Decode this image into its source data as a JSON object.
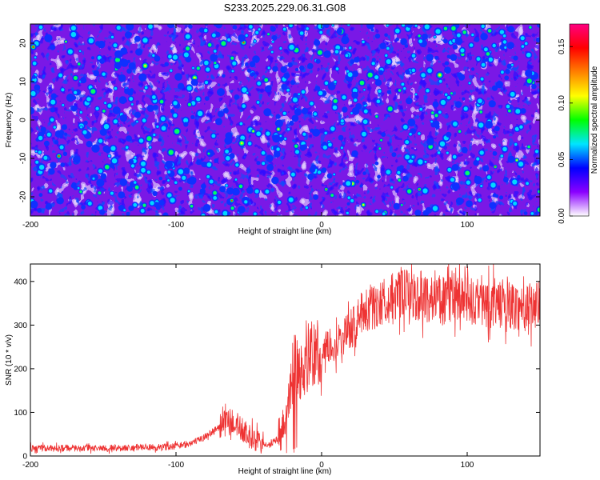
{
  "title": "S233.2025.229.06.31.G08",
  "chart_data": [
    {
      "type": "heatmap",
      "title": "S233.2025.229.06.31.G08",
      "xlabel": "Height of straight line (km)",
      "ylabel": "Frequency (Hz)",
      "xlim": [
        -200,
        150
      ],
      "ylim": [
        -25,
        25
      ],
      "x_ticks": [
        -200,
        -100,
        0,
        100
      ],
      "x_tick_labels": [
        "-200",
        "-100",
        "0",
        "100"
      ],
      "y_ticks": [
        -20,
        -10,
        0,
        10,
        20
      ],
      "y_tick_labels": [
        "-20",
        "-10",
        "0",
        "10",
        "20"
      ],
      "colorbar": {
        "label": "Normalized spectral amplitude",
        "range": [
          0,
          0.17
        ],
        "ticks": [
          0,
          0.05,
          0.1,
          0.15
        ],
        "tick_labels": [
          "0.00",
          "0.05",
          "0.10",
          "0.15"
        ],
        "colormap": [
          "#ffffff",
          "#8a00ff",
          "#0000ff",
          "#00e5ff",
          "#00ff00",
          "#ffff00",
          "#ff8000",
          "#ff0000",
          "#ff0080"
        ]
      },
      "description_values": "noise-like speckle field, amplitude mostly 0.01-0.06 with sparse peaks up to ~0.13"
    },
    {
      "type": "line",
      "xlabel": "Height of straight line (km)",
      "ylabel": "SNR (10 * v/v)",
      "xlim": [
        -200,
        150
      ],
      "ylim": [
        0,
        440
      ],
      "x_ticks": [
        -200,
        -100,
        0,
        100
      ],
      "x_tick_labels": [
        "-200",
        "-100",
        "0",
        "100"
      ],
      "y_ticks": [
        0,
        100,
        200,
        300,
        400
      ],
      "y_tick_labels": [
        "0",
        "100",
        "200",
        "300",
        "400"
      ],
      "series": [
        {
          "name": "SNR",
          "color": "#ee3333",
          "x": [
            -200,
            -150,
            -110,
            -95,
            -85,
            -75,
            -65,
            -58,
            -50,
            -45,
            -40,
            -35,
            -30,
            -25,
            -22,
            -20,
            -18,
            -15,
            -10,
            -5,
            0,
            5,
            10,
            15,
            20,
            25,
            30,
            40,
            50,
            60,
            70,
            80,
            90,
            100,
            110,
            120,
            130,
            140,
            150
          ],
          "values": [
            18,
            18,
            20,
            25,
            35,
            55,
            80,
            70,
            45,
            35,
            28,
            25,
            40,
            80,
            150,
            190,
            200,
            190,
            210,
            230,
            240,
            250,
            260,
            275,
            290,
            315,
            335,
            350,
            365,
            370,
            365,
            360,
            358,
            355,
            350,
            348,
            345,
            340,
            350
          ],
          "noise_amplitude": 30
        }
      ]
    }
  ]
}
